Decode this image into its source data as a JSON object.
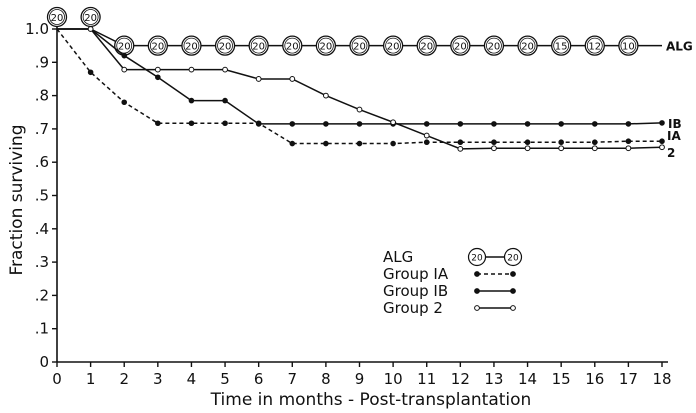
{
  "chart_data": {
    "type": "line",
    "xlabel": "Time in months - Post-transplantation",
    "ylabel": "Fraction surviving",
    "xlim": [
      0,
      18
    ],
    "ylim": [
      0,
      1.0
    ],
    "x_ticks": [
      "0",
      "1",
      "2",
      "3",
      "4",
      "5",
      "6",
      "7",
      "8",
      "9",
      "10",
      "11",
      "12",
      "13",
      "14",
      "15",
      "16",
      "17",
      "18"
    ],
    "y_ticks": [
      {
        "v": 0,
        "label": "0"
      },
      {
        "v": 0.1,
        "label": ".1"
      },
      {
        "v": 0.2,
        "label": ".2"
      },
      {
        "v": 0.3,
        "label": ".3"
      },
      {
        "v": 0.4,
        "label": ".4"
      },
      {
        "v": 0.5,
        "label": ".5"
      },
      {
        "v": 0.6,
        "label": ".6"
      },
      {
        "v": 0.7,
        "label": ".7"
      },
      {
        "v": 0.8,
        "label": ".8"
      },
      {
        "v": 0.9,
        "label": ".9"
      },
      {
        "v": 1.0,
        "label": "1.0"
      }
    ],
    "grid": false,
    "legend": {
      "placement": "center-right",
      "entries": [
        {
          "label": "ALG",
          "series": "ALG",
          "circle_text": "20"
        },
        {
          "label": "Group IA",
          "series": "Group IA"
        },
        {
          "label": "Group IB",
          "series": "Group IB"
        },
        {
          "label": "Group 2",
          "series": "Group 2"
        }
      ]
    },
    "series": [
      {
        "name": "ALG",
        "end_label": "ALG",
        "style": "solid",
        "marker": "circle-number",
        "points": [
          [
            0,
            1.0
          ],
          [
            1,
            1.0
          ],
          [
            2,
            0.95
          ],
          [
            3,
            0.95
          ],
          [
            4,
            0.95
          ],
          [
            5,
            0.95
          ],
          [
            6,
            0.95
          ],
          [
            7,
            0.95
          ],
          [
            8,
            0.95
          ],
          [
            9,
            0.95
          ],
          [
            10,
            0.95
          ],
          [
            11,
            0.95
          ],
          [
            12,
            0.95
          ],
          [
            13,
            0.95
          ],
          [
            14,
            0.95
          ],
          [
            15,
            0.95
          ],
          [
            16,
            0.95
          ],
          [
            17,
            0.95
          ],
          [
            18,
            0.95
          ]
        ],
        "circle_labels": [
          {
            "x": 0,
            "y": 1.0,
            "text": "20",
            "above": true
          },
          {
            "x": 1,
            "y": 1.0,
            "text": "20",
            "above": true
          },
          {
            "x": 2,
            "y": 0.95,
            "text": "20"
          },
          {
            "x": 3,
            "y": 0.95,
            "text": "20"
          },
          {
            "x": 4,
            "y": 0.95,
            "text": "20"
          },
          {
            "x": 5,
            "y": 0.95,
            "text": "20"
          },
          {
            "x": 6,
            "y": 0.95,
            "text": "20"
          },
          {
            "x": 7,
            "y": 0.95,
            "text": "20"
          },
          {
            "x": 8,
            "y": 0.95,
            "text": "20"
          },
          {
            "x": 9,
            "y": 0.95,
            "text": "20"
          },
          {
            "x": 10,
            "y": 0.95,
            "text": "20"
          },
          {
            "x": 11,
            "y": 0.95,
            "text": "20"
          },
          {
            "x": 12,
            "y": 0.95,
            "text": "20"
          },
          {
            "x": 13,
            "y": 0.95,
            "text": "20"
          },
          {
            "x": 14,
            "y": 0.95,
            "text": "20"
          },
          {
            "x": 15,
            "y": 0.95,
            "text": "15"
          },
          {
            "x": 16,
            "y": 0.95,
            "text": "12"
          },
          {
            "x": 17,
            "y": 0.95,
            "text": "10"
          }
        ]
      },
      {
        "name": "Group IA",
        "end_label": "IA",
        "style": "dashed",
        "marker": "filled",
        "points": [
          [
            0,
            1.0
          ],
          [
            1,
            0.87
          ],
          [
            2,
            0.78
          ],
          [
            3,
            0.717
          ],
          [
            4,
            0.717
          ],
          [
            5,
            0.717
          ],
          [
            6,
            0.717
          ],
          [
            7,
            0.656
          ],
          [
            8,
            0.656
          ],
          [
            9,
            0.656
          ],
          [
            10,
            0.656
          ],
          [
            11,
            0.66
          ],
          [
            12,
            0.66
          ],
          [
            13,
            0.66
          ],
          [
            14,
            0.66
          ],
          [
            15,
            0.66
          ],
          [
            16,
            0.66
          ],
          [
            17,
            0.663
          ],
          [
            18,
            0.663
          ]
        ]
      },
      {
        "name": "Group IB",
        "end_label": "IB",
        "style": "solid",
        "marker": "filled",
        "points": [
          [
            0,
            1.0
          ],
          [
            1,
            1.0
          ],
          [
            2,
            0.92
          ],
          [
            3,
            0.855
          ],
          [
            4,
            0.785
          ],
          [
            5,
            0.785
          ],
          [
            6,
            0.715
          ],
          [
            7,
            0.715
          ],
          [
            8,
            0.715
          ],
          [
            9,
            0.715
          ],
          [
            10,
            0.715
          ],
          [
            11,
            0.715
          ],
          [
            12,
            0.715
          ],
          [
            13,
            0.715
          ],
          [
            14,
            0.715
          ],
          [
            15,
            0.715
          ],
          [
            16,
            0.715
          ],
          [
            17,
            0.715
          ],
          [
            18,
            0.718
          ]
        ]
      },
      {
        "name": "Group 2",
        "end_label": "2",
        "style": "solid",
        "marker": "open",
        "points": [
          [
            0,
            1.0
          ],
          [
            1,
            1.0
          ],
          [
            2,
            0.878
          ],
          [
            3,
            0.878
          ],
          [
            4,
            0.878
          ],
          [
            5,
            0.878
          ],
          [
            6,
            0.85
          ],
          [
            7,
            0.85
          ],
          [
            8,
            0.8
          ],
          [
            9,
            0.758
          ],
          [
            10,
            0.72
          ],
          [
            11,
            0.68
          ],
          [
            12,
            0.64
          ],
          [
            13,
            0.642
          ],
          [
            14,
            0.642
          ],
          [
            15,
            0.642
          ],
          [
            16,
            0.642
          ],
          [
            17,
            0.642
          ],
          [
            18,
            0.645
          ]
        ]
      }
    ]
  }
}
